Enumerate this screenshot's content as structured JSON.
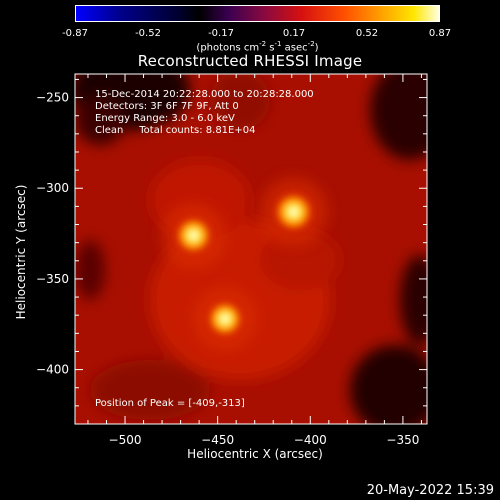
{
  "colorbar": {
    "ticks": [
      "-0.87",
      "-0.52",
      "-0.17",
      "0.17",
      "0.52",
      "0.87"
    ],
    "units_prefix": "(photons cm",
    "units_exp1": "-2",
    "units_mid1": " s",
    "units_exp2": "-1",
    "units_mid2": " asec",
    "units_exp3": "-2",
    "units_suffix": ")"
  },
  "chart_data": {
    "type": "heatmap",
    "title": "Reconstructed RHESSI Image",
    "xlabel": "Heliocentric X (arcsec)",
    "ylabel": "Heliocentric Y (arcsec)",
    "xlim": [
      -527,
      -337
    ],
    "ylim": [
      -430,
      -237
    ],
    "xticks": [
      -500,
      -450,
      -400,
      -350
    ],
    "yticks": [
      -250,
      -300,
      -350,
      -400
    ],
    "xtick_labels": [
      "−500",
      "−450",
      "−400",
      "−350"
    ],
    "ytick_labels": [
      "−250",
      "−300",
      "−350",
      "−400"
    ],
    "colorscale": "red-temperature",
    "value_range": [
      -0.87,
      0.87
    ],
    "sources": [
      {
        "x": -409,
        "y": -313,
        "peak": 0.87
      },
      {
        "x": -463,
        "y": -326,
        "peak": 0.78
      },
      {
        "x": -446,
        "y": -372,
        "peak": 0.72
      }
    ],
    "annotations": [
      "15-Dec-2014 20:22:28.000 to 20:28:28.000",
      "Detectors: 3F 6F 7F 9F, Att 0",
      "Energy Range: 3.0 - 6.0 keV",
      "Clean     Total counts: 8.81E+04",
      "Position of Peak = [-409,-313]"
    ]
  },
  "footer": {
    "date": "20-May-2022 15:39"
  }
}
